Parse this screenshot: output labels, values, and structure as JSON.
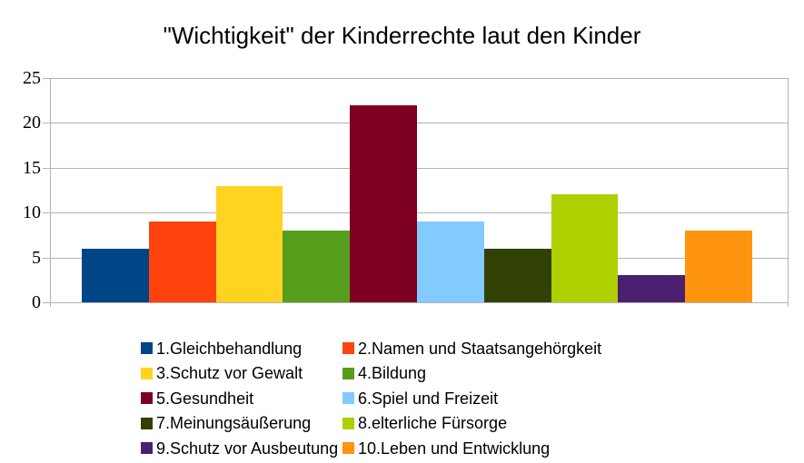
{
  "chart_data": {
    "type": "bar",
    "title": "\"Wichtigkeit\" der Kinderrechte laut den Kinder",
    "categories": [
      "1.Gleichbehandlung",
      "2.Namen und Staatsangehörgkeit",
      "3.Schutz vor Gewalt",
      "4.Bildung",
      "5.Gesundheit",
      "6.Spiel und Freizeit",
      "7.Meinungsäußerung",
      "8.elterliche Fürsorge",
      "9.Schutz vor Ausbeutung",
      "10.Leben und Entwicklung"
    ],
    "series": [
      {
        "name": "1.Gleichbehandlung",
        "value": 6,
        "color": "#004586"
      },
      {
        "name": "2.Namen und Staatsangehörgkeit",
        "value": 9,
        "color": "#ff420e"
      },
      {
        "name": "3.Schutz vor Gewalt",
        "value": 13,
        "color": "#ffd320"
      },
      {
        "name": "4.Bildung",
        "value": 8,
        "color": "#579d1c"
      },
      {
        "name": "5.Gesundheit",
        "value": 22,
        "color": "#7e0021"
      },
      {
        "name": "6.Spiel und Freizeit",
        "value": 9,
        "color": "#83caff"
      },
      {
        "name": "7.Meinungsäußerung",
        "value": 6,
        "color": "#314004"
      },
      {
        "name": "8.elterliche Fürsorge",
        "value": 12,
        "color": "#aecf00"
      },
      {
        "name": "9.Schutz vor Ausbeutung",
        "value": 3,
        "color": "#4b1f6f"
      },
      {
        "name": "10.Leben und Entwicklung",
        "value": 8,
        "color": "#ff950e"
      }
    ],
    "xlabel": "",
    "ylabel": "",
    "ylim": [
      0,
      25
    ],
    "yticks": [
      0,
      5,
      10,
      15,
      20,
      25
    ],
    "grid": true,
    "legend_position": "bottom",
    "legend_columns": 2,
    "colors": {
      "grid": "#b3b3b3",
      "axis": "#b3b3b3",
      "text": "#000000",
      "background": "#ffffff"
    }
  }
}
